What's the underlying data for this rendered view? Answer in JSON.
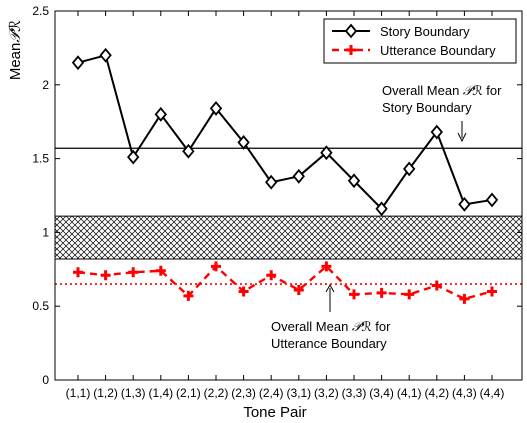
{
  "chart_data": {
    "type": "line",
    "xlabel": "Tone Pair",
    "ylabel": "Mean",
    "ylabel_symbol": "𝒫ℛ",
    "ylim": [
      0,
      2.5
    ],
    "yticks": [
      0,
      0.5,
      1,
      1.5,
      2,
      2.5
    ],
    "ytick_labels": [
      "0",
      "0.5",
      "1",
      "1.5",
      "2",
      "2.5"
    ],
    "grid": false,
    "legend_position": "top-right",
    "categories": [
      "(1,1)",
      "(1,2)",
      "(1,3)",
      "(1,4)",
      "(2,1)",
      "(2,2)",
      "(2,3)",
      "(2,4)",
      "(3,1)",
      "(3,2)",
      "(3,3)",
      "(3,4)",
      "(4,1)",
      "(4,2)",
      "(4,3)",
      "(4,4)"
    ],
    "series": [
      {
        "name": "Story Boundary",
        "color": "#000000",
        "line": "solid",
        "marker": "diamond-open",
        "values": [
          2.15,
          2.2,
          1.51,
          1.8,
          1.55,
          1.84,
          1.61,
          1.34,
          1.38,
          1.54,
          1.35,
          1.16,
          1.43,
          1.68,
          1.19,
          1.22
        ]
      },
      {
        "name": "Utterance Boundary",
        "color": "#ff0000",
        "line": "dashed",
        "marker": "filled-cross",
        "values": [
          0.73,
          0.71,
          0.73,
          0.74,
          0.57,
          0.77,
          0.6,
          0.71,
          0.61,
          0.77,
          0.58,
          0.59,
          0.58,
          0.64,
          0.55,
          0.6
        ]
      }
    ],
    "reference_lines": [
      {
        "value": 1.57,
        "color": "#000000",
        "style": "solid"
      },
      {
        "value": 0.65,
        "color": "#ff0000",
        "style": "dotted"
      }
    ],
    "band": {
      "from": 0.82,
      "to": 1.11,
      "pattern": "crosshatch"
    },
    "annotations": [
      {
        "lines": [
          "Overall Mean ",
          "Story Boundary"
        ],
        "symbol": "𝒫ℛ",
        "suffix": " for"
      },
      {
        "lines": [
          "Overall Mean ",
          "Utterance Boundary"
        ],
        "symbol": "𝒫ℛ",
        "suffix": " for"
      }
    ]
  }
}
